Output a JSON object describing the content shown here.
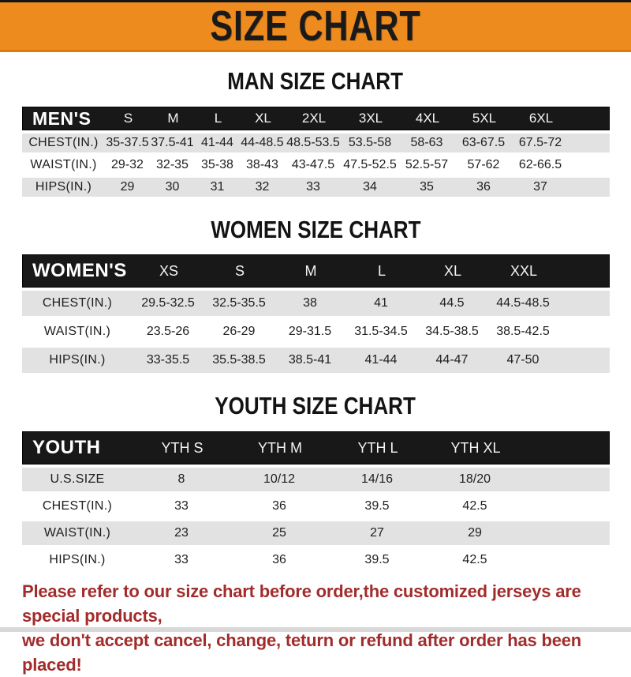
{
  "page": {
    "title": "SIZE CHART",
    "footer_line1": "Please refer to our size chart before order,the customized jerseys are special products,",
    "footer_line2": "we don't accept cancel, change, teturn or refund after order has been placed!"
  },
  "colors": {
    "banner_orange": "#EE8B1E",
    "banner_shadow": "#D97B12",
    "header_bar_black": "#181818",
    "row_gray": "#E2E2E2",
    "footer_red": "#A22C2C"
  },
  "tables": [
    {
      "section_title": "MAN SIZE CHART",
      "header_label": "MEN'S",
      "sizes": [
        "S",
        "M",
        "L",
        "XL",
        "2XL",
        "3XL",
        "4XL",
        "5XL",
        "6XL"
      ],
      "rows": [
        {
          "label": "CHEST(IN.)",
          "values": [
            "35-37.5",
            "37.5-41",
            "41-44",
            "44-48.5",
            "48.5-53.5",
            "53.5-58",
            "58-63",
            "63-67.5",
            "67.5-72"
          ]
        },
        {
          "label": "WAIST(IN.)",
          "values": [
            "29-32",
            "32-35",
            "35-38",
            "38-43",
            "43-47.5",
            "47.5-52.5",
            "52.5-57",
            "57-62",
            "62-66.5"
          ]
        },
        {
          "label": "HIPS(IN.)",
          "values": [
            "29",
            "30",
            "31",
            "32",
            "33",
            "34",
            "35",
            "36",
            "37"
          ]
        }
      ]
    },
    {
      "section_title": "WOMEN SIZE CHART",
      "header_label": "WOMEN'S",
      "sizes": [
        "XS",
        "S",
        "M",
        "L",
        "XL",
        "XXL"
      ],
      "rows": [
        {
          "label": "CHEST(IN.)",
          "values": [
            "29.5-32.5",
            "32.5-35.5",
            "38",
            "41",
            "44.5",
            "44.5-48.5"
          ]
        },
        {
          "label": "WAIST(IN.)",
          "values": [
            "23.5-26",
            "26-29",
            "29-31.5",
            "31.5-34.5",
            "34.5-38.5",
            "38.5-42.5"
          ]
        },
        {
          "label": "HIPS(IN.)",
          "values": [
            "33-35.5",
            "35.5-38.5",
            "38.5-41",
            "41-44",
            "44-47",
            "47-50"
          ]
        }
      ]
    },
    {
      "section_title": "YOUTH SIZE CHART",
      "header_label": "YOUTH",
      "sizes": [
        "YTH S",
        "YTH M",
        "YTH L",
        "YTH XL"
      ],
      "rows": [
        {
          "label": "U.S.SIZE",
          "values": [
            "8",
            "10/12",
            "14/16",
            "18/20"
          ]
        },
        {
          "label": "CHEST(IN.)",
          "values": [
            "33",
            "36",
            "39.5",
            "42.5"
          ]
        },
        {
          "label": "WAIST(IN.)",
          "values": [
            "23",
            "25",
            "27",
            "29"
          ]
        },
        {
          "label": "HIPS(IN.)",
          "values": [
            "33",
            "36",
            "39.5",
            "42.5"
          ]
        }
      ]
    }
  ]
}
